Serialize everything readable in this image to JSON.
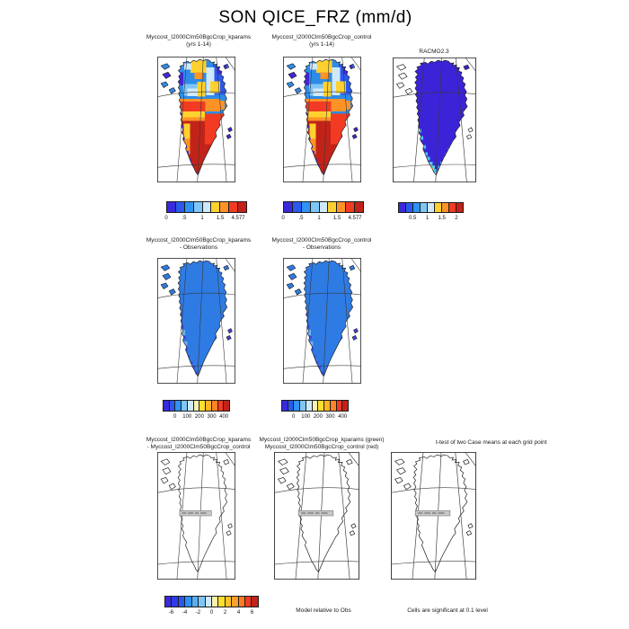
{
  "main_title": "SON QICE_FRZ (mm/d)",
  "row1": {
    "panel1_title_l1": "Myccost_I2000Clm50BgcCrop_kparams",
    "panel1_title_l2": "(yrs 1-14)",
    "panel2_title_l1": "Myccost_I2000Clm50BgcCrop_control",
    "panel2_title_l2": "(yrs 1-14)",
    "panel3_title": "RACMO2.3"
  },
  "row2": {
    "panel1_title_l1": "Myccost_I2000Clm50BgcCrop_kparams",
    "panel1_title_l2": "- Observations",
    "panel2_title_l1": "Myccost_I2000Clm50BgcCrop_control",
    "panel2_title_l2": "- Observations"
  },
  "row3": {
    "panel1_title_l1": "Myccost_I2000Clm50BgcCrop_kparams",
    "panel1_title_l2": "- Myccost_I2000Clm50BgcCrop_control",
    "panel2_title_l1": "Myccost_I2000Clm50BgcCrop_kparams (green)",
    "panel2_title_l2": "Myccost_I2000Clm50BgcCrop_control (red)",
    "panel3_title": "t-test of two Case means at each grid point",
    "model_note": "Model relative to Obs",
    "sig_note": "Cells are significant at 0.1 level"
  },
  "colorbars": {
    "son_kparams": {
      "colors": [
        "#3A2ADB",
        "#2B59EE",
        "#2E93F2",
        "#7EC6F8",
        "#CFE9FB",
        "#FFD12E",
        "#FF9326",
        "#F23B22",
        "#C22318"
      ],
      "labels": [
        "0",
        ".5",
        "1",
        "1.5",
        "4.577"
      ],
      "fracs": [
        0,
        0.2222,
        0.4444,
        0.6667,
        0.8889
      ]
    },
    "son_control": {
      "colors": [
        "#3A2ADB",
        "#2B59EE",
        "#2E93F2",
        "#7EC6F8",
        "#CFE9FB",
        "#FFD12E",
        "#FF9326",
        "#F23B22",
        "#C22318"
      ],
      "labels": [
        "0",
        ".5",
        "1",
        "1.5",
        "4.577"
      ],
      "fracs": [
        0,
        0.2222,
        0.4444,
        0.6667,
        0.8889
      ]
    },
    "racmo": {
      "colors": [
        "#3A2ADB",
        "#2B59EE",
        "#2E93F2",
        "#7EC6F8",
        "#CFE9FB",
        "#FFD12E",
        "#FF9326",
        "#F23B22",
        "#C22318"
      ],
      "labels": [
        "0.5",
        "1",
        "1.5",
        "2"
      ],
      "fracs": [
        0.2222,
        0.4444,
        0.6667,
        0.8889
      ]
    },
    "diff_obs_kparams": {
      "colors": [
        "#3A2ADB",
        "#2B59EE",
        "#2E93F2",
        "#7EC6F8",
        "#CFE9FB",
        "#FAF0B0",
        "#FFDF2E",
        "#FFB428",
        "#FF8426",
        "#F23B22",
        "#C22318"
      ],
      "labels": [
        "0",
        "100",
        "200",
        "300",
        "400"
      ],
      "fracs": [
        0.1818,
        0.3636,
        0.5455,
        0.7273,
        0.9091
      ]
    },
    "diff_obs_control": {
      "colors": [
        "#3A2ADB",
        "#2B59EE",
        "#2E93F2",
        "#7EC6F8",
        "#CFE9FB",
        "#FAF0B0",
        "#FFDF2E",
        "#FFB428",
        "#FF8426",
        "#F23B22",
        "#C22318"
      ],
      "labels": [
        "0",
        "100",
        "200",
        "300",
        "400"
      ],
      "fracs": [
        0.1818,
        0.3636,
        0.5455,
        0.7273,
        0.9091
      ]
    },
    "model_diff": {
      "colors": [
        "#3A2ADB",
        "#2E3BE8",
        "#2B59EE",
        "#2E93F2",
        "#57ADF5",
        "#7EC6F8",
        "#CFE9FB",
        "#FAF0B0",
        "#FFDF2E",
        "#FFC32B",
        "#FFA027",
        "#FF7A24",
        "#F23B22",
        "#C22318"
      ],
      "labels": [
        "-6",
        "-4",
        "-2",
        "0",
        "2",
        "4",
        "6"
      ],
      "fracs": [
        0.0714,
        0.2143,
        0.3571,
        0.5,
        0.6429,
        0.7857,
        0.9286
      ]
    }
  },
  "chart_data": [
    {
      "type": "heatmap",
      "panel": "row1-left",
      "title": "Myccost_I2000Clm50BgcCrop_kparams (yrs 1-14)",
      "variable": "QICE_FRZ",
      "season": "SON",
      "units": "mm/d",
      "region": "Greenland ice sheet map",
      "scale_ticks": [
        0,
        0.5,
        1,
        1.5,
        4.577
      ],
      "pattern": "blues (0-1 mm/d) over northern ice sheet with yellow patches near summit, orange/red band (1-1.5) across center, dark red (>1.5) over the south"
    },
    {
      "type": "heatmap",
      "panel": "row1-middle",
      "title": "Myccost_I2000Clm50BgcCrop_control (yrs 1-14)",
      "variable": "QICE_FRZ",
      "season": "SON",
      "units": "mm/d",
      "region": "Greenland ice sheet map",
      "scale_ticks": [
        0,
        0.5,
        1,
        1.5,
        4.577
      ],
      "pattern": "nearly identical to kparams panel: blue north, orange/red central band, dark red south"
    },
    {
      "type": "heatmap",
      "panel": "row1-right",
      "title": "RACMO2.3",
      "units": "mm/d",
      "region": "Greenland ice sheet map",
      "scale_ticks": [
        0.5,
        1,
        1.5,
        2
      ],
      "pattern": "uniform lowest-bin dark blue/violet over entire ice sheet, scattered cyan cells along the southern margin"
    },
    {
      "type": "heatmap",
      "panel": "row2-left",
      "title": "Myccost_I2000Clm50BgcCrop_kparams - Observations",
      "region": "Greenland ice sheet map",
      "scale_ticks": [
        0,
        100,
        200,
        300,
        400
      ],
      "pattern": "uniform medium blue (low positive bin) over entire ice sheet"
    },
    {
      "type": "heatmap",
      "panel": "row2-middle",
      "title": "Myccost_I2000Clm50BgcCrop_control - Observations",
      "region": "Greenland ice sheet map",
      "scale_ticks": [
        0,
        100,
        200,
        300,
        400
      ],
      "pattern": "uniform medium blue (low positive bin) over entire ice sheet"
    },
    {
      "type": "heatmap",
      "panel": "row3",
      "title": "Myccost_I2000Clm50BgcCrop_kparams - Myccost_I2000Clm50BgcCrop_control / t-test of two Case means at each grid point",
      "scale_ticks": [
        -6,
        -4,
        -2,
        0,
        2,
        4,
        6
      ],
      "pattern": "three outline-only maps with no shaded cells; small gray label box at map center",
      "notes": [
        "Model relative to Obs",
        "Cells are significant at 0.1 level"
      ]
    }
  ]
}
